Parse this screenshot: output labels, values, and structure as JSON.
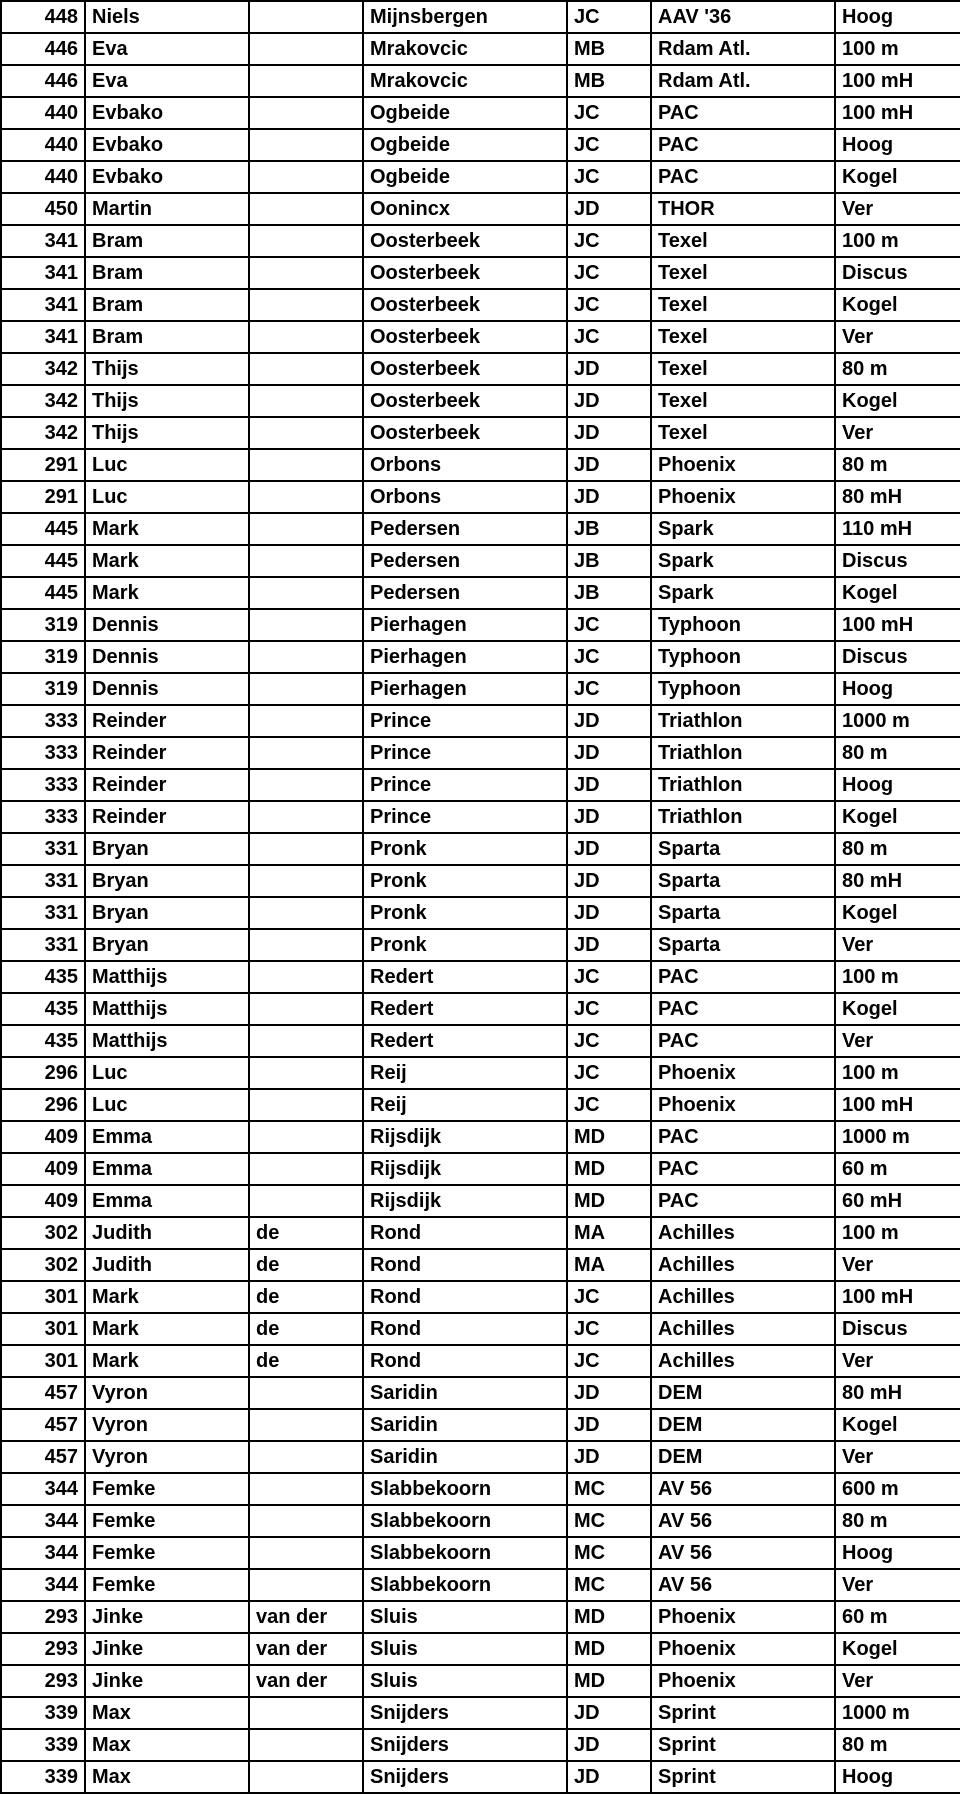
{
  "table": {
    "columns": [
      {
        "class": "col-num"
      },
      {
        "class": "col-first"
      },
      {
        "class": "col-pre"
      },
      {
        "class": "col-last"
      },
      {
        "class": "col-cat"
      },
      {
        "class": "col-club"
      },
      {
        "class": "col-event"
      }
    ],
    "rows": [
      [
        "448",
        "Niels",
        "",
        "Mijnsbergen",
        "JC",
        "AAV '36",
        "Hoog"
      ],
      [
        "446",
        "Eva",
        "",
        "Mrakovcic",
        "MB",
        "Rdam Atl.",
        "100 m"
      ],
      [
        "446",
        "Eva",
        "",
        "Mrakovcic",
        "MB",
        "Rdam Atl.",
        "100 mH"
      ],
      [
        "440",
        "Evbako",
        "",
        "Ogbeide",
        "JC",
        "PAC",
        "100 mH"
      ],
      [
        "440",
        "Evbako",
        "",
        "Ogbeide",
        "JC",
        "PAC",
        "Hoog"
      ],
      [
        "440",
        "Evbako",
        "",
        "Ogbeide",
        "JC",
        "PAC",
        "Kogel"
      ],
      [
        "450",
        "Martin",
        "",
        "Oonincx",
        "JD",
        "THOR",
        "Ver"
      ],
      [
        "341",
        "Bram",
        "",
        "Oosterbeek",
        "JC",
        "Texel",
        "100 m"
      ],
      [
        "341",
        "Bram",
        "",
        "Oosterbeek",
        "JC",
        "Texel",
        "Discus"
      ],
      [
        "341",
        "Bram",
        "",
        "Oosterbeek",
        "JC",
        "Texel",
        "Kogel"
      ],
      [
        "341",
        "Bram",
        "",
        "Oosterbeek",
        "JC",
        "Texel",
        "Ver"
      ],
      [
        "342",
        "Thijs",
        "",
        "Oosterbeek",
        "JD",
        "Texel",
        "80 m"
      ],
      [
        "342",
        "Thijs",
        "",
        "Oosterbeek",
        "JD",
        "Texel",
        "Kogel"
      ],
      [
        "342",
        "Thijs",
        "",
        "Oosterbeek",
        "JD",
        "Texel",
        "Ver"
      ],
      [
        "291",
        "Luc",
        "",
        "Orbons",
        "JD",
        "Phoenix",
        "80 m"
      ],
      [
        "291",
        "Luc",
        "",
        "Orbons",
        "JD",
        "Phoenix",
        "80 mH"
      ],
      [
        "445",
        "Mark",
        "",
        "Pedersen",
        "JB",
        "Spark",
        "110 mH"
      ],
      [
        "445",
        "Mark",
        "",
        "Pedersen",
        "JB",
        "Spark",
        "Discus"
      ],
      [
        "445",
        "Mark",
        "",
        "Pedersen",
        "JB",
        "Spark",
        "Kogel"
      ],
      [
        "319",
        "Dennis",
        "",
        "Pierhagen",
        "JC",
        "Typhoon",
        "100 mH"
      ],
      [
        "319",
        "Dennis",
        "",
        "Pierhagen",
        "JC",
        "Typhoon",
        "Discus"
      ],
      [
        "319",
        "Dennis",
        "",
        "Pierhagen",
        "JC",
        "Typhoon",
        "Hoog"
      ],
      [
        "333",
        "Reinder",
        "",
        "Prince",
        "JD",
        "Triathlon",
        "1000 m"
      ],
      [
        "333",
        "Reinder",
        "",
        "Prince",
        "JD",
        "Triathlon",
        "80 m"
      ],
      [
        "333",
        "Reinder",
        "",
        "Prince",
        "JD",
        "Triathlon",
        "Hoog"
      ],
      [
        "333",
        "Reinder",
        "",
        "Prince",
        "JD",
        "Triathlon",
        "Kogel"
      ],
      [
        "331",
        "Bryan",
        "",
        "Pronk",
        "JD",
        "Sparta",
        "80 m"
      ],
      [
        "331",
        "Bryan",
        "",
        "Pronk",
        "JD",
        "Sparta",
        "80 mH"
      ],
      [
        "331",
        "Bryan",
        "",
        "Pronk",
        "JD",
        "Sparta",
        "Kogel"
      ],
      [
        "331",
        "Bryan",
        "",
        "Pronk",
        "JD",
        "Sparta",
        "Ver"
      ],
      [
        "435",
        "Matthijs",
        "",
        "Redert",
        "JC",
        "PAC",
        "100 m"
      ],
      [
        "435",
        "Matthijs",
        "",
        "Redert",
        "JC",
        "PAC",
        "Kogel"
      ],
      [
        "435",
        "Matthijs",
        "",
        "Redert",
        "JC",
        "PAC",
        "Ver"
      ],
      [
        "296",
        "Luc",
        "",
        "Reij",
        "JC",
        "Phoenix",
        "100 m"
      ],
      [
        "296",
        "Luc",
        "",
        "Reij",
        "JC",
        "Phoenix",
        "100 mH"
      ],
      [
        "409",
        "Emma",
        "",
        "Rijsdijk",
        "MD",
        "PAC",
        "1000 m"
      ],
      [
        "409",
        "Emma",
        "",
        "Rijsdijk",
        "MD",
        "PAC",
        "60 m"
      ],
      [
        "409",
        "Emma",
        "",
        "Rijsdijk",
        "MD",
        "PAC",
        "60 mH"
      ],
      [
        "302",
        "Judith",
        "de",
        "Rond",
        "MA",
        "Achilles",
        "100 m"
      ],
      [
        "302",
        "Judith",
        "de",
        "Rond",
        "MA",
        "Achilles",
        "Ver"
      ],
      [
        "301",
        "Mark",
        "de",
        "Rond",
        "JC",
        "Achilles",
        "100 mH"
      ],
      [
        "301",
        "Mark",
        "de",
        "Rond",
        "JC",
        "Achilles",
        "Discus"
      ],
      [
        "301",
        "Mark",
        "de",
        "Rond",
        "JC",
        "Achilles",
        "Ver"
      ],
      [
        "457",
        "Vyron",
        "",
        "Saridin",
        "JD",
        "DEM",
        "80 mH"
      ],
      [
        "457",
        "Vyron",
        "",
        "Saridin",
        "JD",
        "DEM",
        "Kogel"
      ],
      [
        "457",
        "Vyron",
        "",
        "Saridin",
        "JD",
        "DEM",
        "Ver"
      ],
      [
        "344",
        "Femke",
        "",
        "Slabbekoorn",
        "MC",
        "AV 56",
        "600 m"
      ],
      [
        "344",
        "Femke",
        "",
        "Slabbekoorn",
        "MC",
        "AV 56",
        "80 m"
      ],
      [
        "344",
        "Femke",
        "",
        "Slabbekoorn",
        "MC",
        "AV 56",
        "Hoog"
      ],
      [
        "344",
        "Femke",
        "",
        "Slabbekoorn",
        "MC",
        "AV 56",
        "Ver"
      ],
      [
        "293",
        "Jinke",
        "van der",
        "Sluis",
        "MD",
        "Phoenix",
        "60 m"
      ],
      [
        "293",
        "Jinke",
        "van der",
        "Sluis",
        "MD",
        "Phoenix",
        "Kogel"
      ],
      [
        "293",
        "Jinke",
        "van der",
        "Sluis",
        "MD",
        "Phoenix",
        "Ver"
      ],
      [
        "339",
        "Max",
        "",
        "Snijders",
        "JD",
        "Sprint",
        "1000 m"
      ],
      [
        "339",
        "Max",
        "",
        "Snijders",
        "JD",
        "Sprint",
        "80 m"
      ],
      [
        "339",
        "Max",
        "",
        "Snijders",
        "JD",
        "Sprint",
        "Hoog"
      ]
    ]
  }
}
